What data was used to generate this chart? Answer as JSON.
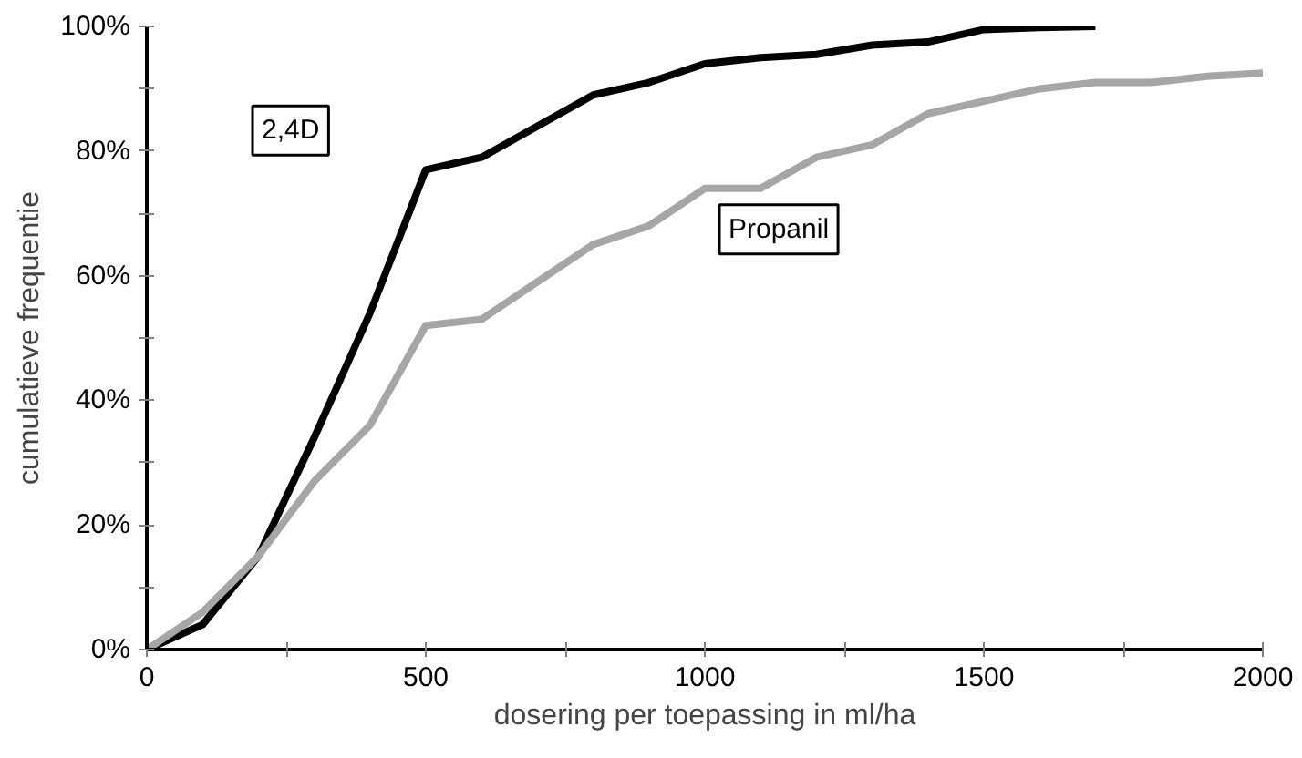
{
  "chart_data": {
    "type": "line",
    "xlabel": "dosering per toepassing in ml/ha",
    "ylabel": "cumulatieve frequentie",
    "x": [
      0,
      100,
      200,
      300,
      400,
      500,
      600,
      700,
      800,
      900,
      1000,
      1100,
      1200,
      1300,
      1400,
      1500,
      1600,
      1700,
      1800,
      1900,
      2000
    ],
    "series": [
      {
        "name": "2,4D",
        "color": "#000000",
        "x": [
          0,
          100,
          200,
          300,
          400,
          500,
          600,
          700,
          800,
          900,
          1000,
          1100,
          1200,
          1300,
          1400,
          1500,
          1600,
          1700
        ],
        "values": [
          0,
          4,
          15,
          34,
          54,
          77,
          79,
          84,
          89,
          91,
          94,
          95,
          95.5,
          97,
          97.5,
          99.5,
          99.8,
          100
        ]
      },
      {
        "name": "Propanil",
        "color": "#a6a6a6",
        "values": [
          0,
          6,
          15,
          27,
          36,
          52,
          53,
          59,
          65,
          68,
          74,
          74,
          79,
          81,
          86,
          88,
          90,
          91,
          91,
          92,
          92.5
        ]
      }
    ],
    "xlim": [
      0,
      2000
    ],
    "xticks": [
      0,
      {
        "value": 250,
        "label": null
      },
      500,
      {
        "value": 750,
        "label": null
      },
      1000,
      {
        "value": 1250,
        "label": null
      },
      1500,
      {
        "value": 1750,
        "label": null
      },
      2000
    ],
    "ylim": [
      0,
      100
    ],
    "yticks": [
      {
        "value": 0,
        "label": "0%"
      },
      {
        "value": 10,
        "label": null
      },
      {
        "value": 20,
        "label": "20%"
      },
      {
        "value": 30,
        "label": null
      },
      {
        "value": 40,
        "label": "40%"
      },
      {
        "value": 50,
        "label": null
      },
      {
        "value": 60,
        "label": "60%"
      },
      {
        "value": 70,
        "label": null
      },
      {
        "value": 80,
        "label": "80%"
      },
      {
        "value": 90,
        "label": null
      },
      {
        "value": 100,
        "label": "100%"
      }
    ],
    "grid": false,
    "legend": false,
    "marker": "none",
    "line_style": "solid"
  }
}
